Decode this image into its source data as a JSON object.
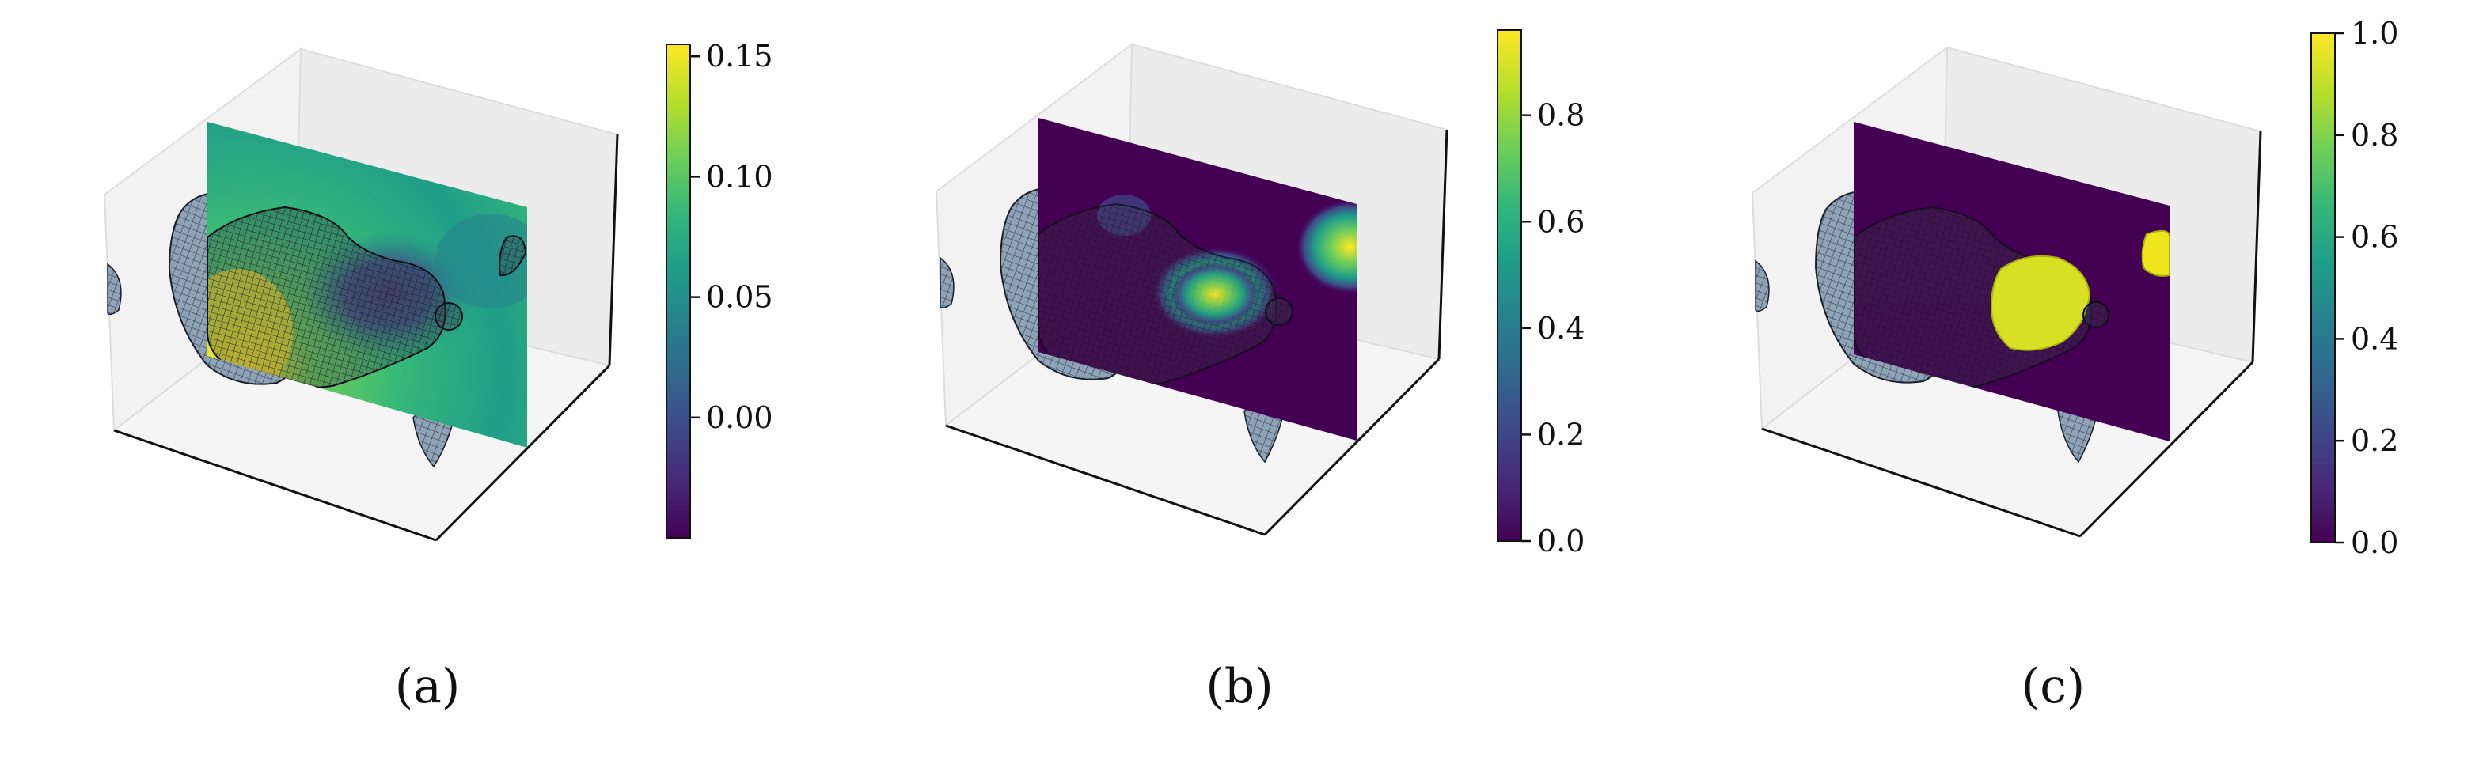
{
  "chart_data": [
    {
      "type": "heatmap",
      "panel_label": "(a)",
      "colormap": "viridis",
      "colorbar": {
        "range": [
          -0.05,
          0.155
        ],
        "ticks": [
          0.15,
          0.1,
          0.05,
          0.0
        ],
        "tick_labels": [
          "0.15",
          "0.10",
          "0.05",
          "0.00"
        ]
      },
      "slice_style": "smooth continuous field",
      "grid": false
    },
    {
      "type": "heatmap",
      "panel_label": "(b)",
      "colormap": "viridis",
      "colorbar": {
        "range": [
          0.0,
          0.96
        ],
        "ticks": [
          0.8,
          0.6,
          0.4,
          0.2,
          0.0
        ],
        "tick_labels": [
          "0.8",
          "0.6",
          "0.4",
          "0.2",
          "0.0"
        ]
      },
      "slice_style": "mostly zero with local peaks",
      "grid": false
    },
    {
      "type": "heatmap",
      "panel_label": "(c)",
      "colormap": "viridis",
      "colorbar": {
        "range": [
          0.0,
          1.0
        ],
        "ticks": [
          1.0,
          0.8,
          0.6,
          0.4,
          0.2,
          0.0
        ],
        "tick_labels": [
          "1.0",
          "0.8",
          "0.6",
          "0.4",
          "0.2",
          "0.0"
        ]
      },
      "slice_style": "binary 0/1 regions",
      "grid": false
    }
  ],
  "colors": {
    "viridis": [
      "#440154",
      "#482878",
      "#3e4989",
      "#31688e",
      "#26828e",
      "#1f9e89",
      "#35b779",
      "#6ece58",
      "#b5de2b",
      "#fde725"
    ],
    "pane": "#f2f2f2",
    "surface": "#8fa3b8",
    "wire": "#1a1f2b"
  }
}
